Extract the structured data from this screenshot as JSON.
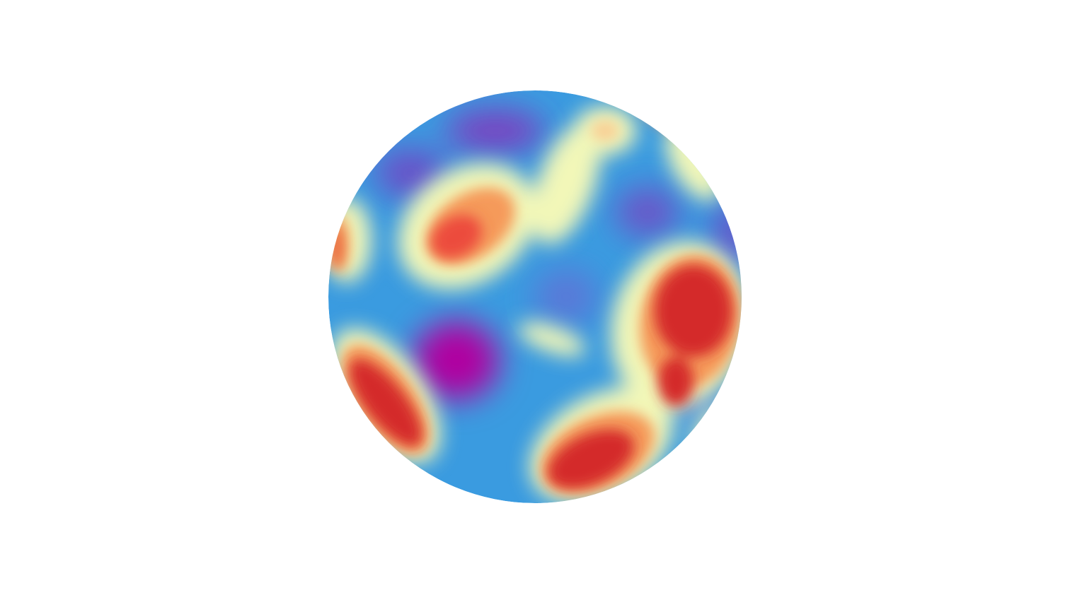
{
  "scene": {
    "background": "#ffffff",
    "object": "sphere",
    "colormap": {
      "name": "spectral",
      "low": "#b000a0",
      "low_mid": "#6a4fc8",
      "mid_low": "#3a9be0",
      "mid": "#f4f7b6",
      "mid_high": "#f6a860",
      "high": "#d0222a"
    }
  }
}
